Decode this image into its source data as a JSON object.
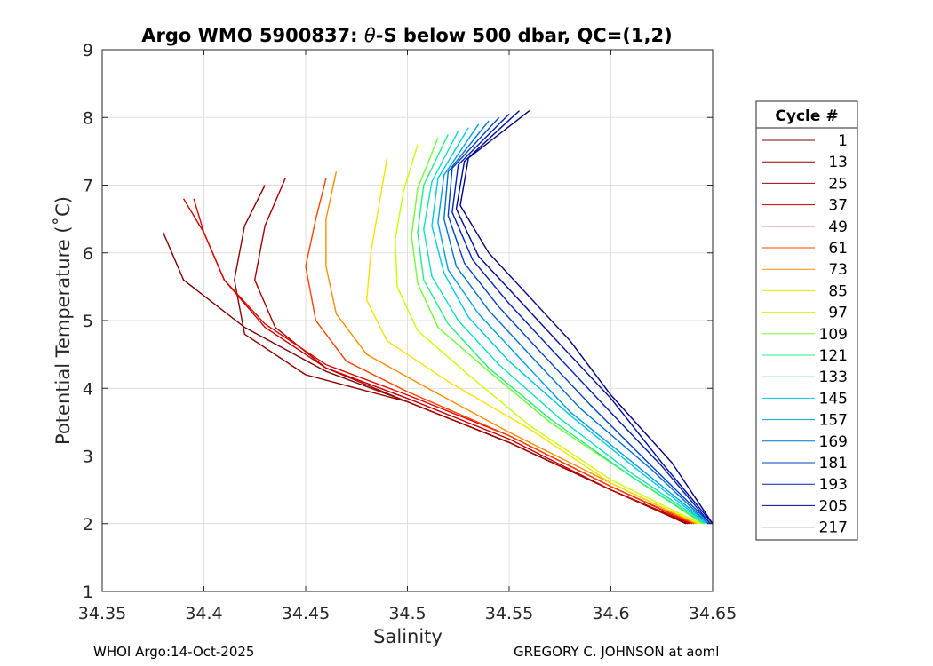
{
  "chart_data": {
    "type": "line",
    "title": "Argo WMO 5900837: θ-S below 500 dbar,  QC=(1,2)",
    "title_parts": {
      "prefix": "Argo WMO 5900837: ",
      "theta": "θ",
      "suffix": "-S below 500 dbar,  QC=(1,2)"
    },
    "xlabel": "Salinity",
    "ylabel": "Potential Temperature (˚C)",
    "xlim": [
      34.35,
      34.65
    ],
    "ylim": [
      1,
      9
    ],
    "xticks": [
      34.35,
      34.4,
      34.45,
      34.5,
      34.55,
      34.6,
      34.65
    ],
    "xtick_labels": [
      "34.35",
      "34.4",
      "34.45",
      "34.5",
      "34.55",
      "34.6",
      "34.65"
    ],
    "yticks": [
      1,
      2,
      3,
      4,
      5,
      6,
      7,
      8,
      9
    ],
    "ytick_labels": [
      "1",
      "2",
      "3",
      "4",
      "5",
      "6",
      "7",
      "8",
      "9"
    ],
    "grid": true,
    "legend_title": "Cycle #",
    "legend_position": "right",
    "series": [
      {
        "name": "1",
        "color": "#800000",
        "points": [
          [
            34.637,
            2.0
          ],
          [
            34.6,
            2.5
          ],
          [
            34.55,
            3.2
          ],
          [
            34.5,
            3.8
          ],
          [
            34.46,
            4.25
          ],
          [
            34.42,
            4.9
          ],
          [
            34.39,
            5.6
          ],
          [
            34.38,
            6.3
          ]
        ]
      },
      {
        "name": "13",
        "color": "#900000",
        "points": [
          [
            34.638,
            2.0
          ],
          [
            34.6,
            2.5
          ],
          [
            34.55,
            3.2
          ],
          [
            34.5,
            3.8
          ],
          [
            34.45,
            4.2
          ],
          [
            34.42,
            4.8
          ],
          [
            34.415,
            5.6
          ],
          [
            34.42,
            6.4
          ],
          [
            34.43,
            7.0
          ]
        ]
      },
      {
        "name": "25",
        "color": "#A80000",
        "points": [
          [
            34.638,
            2.0
          ],
          [
            34.6,
            2.5
          ],
          [
            34.55,
            3.2
          ],
          [
            34.5,
            3.8
          ],
          [
            34.46,
            4.3
          ],
          [
            34.435,
            4.9
          ],
          [
            34.425,
            5.6
          ],
          [
            34.43,
            6.4
          ],
          [
            34.44,
            7.1
          ]
        ]
      },
      {
        "name": "37",
        "color": "#C00000",
        "points": [
          [
            34.639,
            2.0
          ],
          [
            34.6,
            2.5
          ],
          [
            34.55,
            3.25
          ],
          [
            34.5,
            3.85
          ],
          [
            34.46,
            4.3
          ],
          [
            34.43,
            4.9
          ],
          [
            34.41,
            5.6
          ],
          [
            34.4,
            6.3
          ],
          [
            34.39,
            6.8
          ]
        ]
      },
      {
        "name": "49",
        "color": "#E80000",
        "points": [
          [
            34.64,
            2.0
          ],
          [
            34.6,
            2.55
          ],
          [
            34.55,
            3.3
          ],
          [
            34.5,
            3.9
          ],
          [
            34.46,
            4.35
          ],
          [
            34.43,
            4.95
          ],
          [
            34.41,
            5.6
          ],
          [
            34.4,
            6.3
          ],
          [
            34.395,
            6.8
          ]
        ]
      },
      {
        "name": "61",
        "color": "#FF4000",
        "points": [
          [
            34.641,
            2.0
          ],
          [
            34.6,
            2.55
          ],
          [
            34.55,
            3.3
          ],
          [
            34.5,
            3.95
          ],
          [
            34.47,
            4.4
          ],
          [
            34.455,
            5.0
          ],
          [
            34.45,
            5.8
          ],
          [
            34.455,
            6.5
          ],
          [
            34.46,
            7.1
          ]
        ]
      },
      {
        "name": "73",
        "color": "#FF8C00",
        "points": [
          [
            34.642,
            2.0
          ],
          [
            34.6,
            2.6
          ],
          [
            34.55,
            3.35
          ],
          [
            34.51,
            4.0
          ],
          [
            34.48,
            4.5
          ],
          [
            34.465,
            5.1
          ],
          [
            34.46,
            5.8
          ],
          [
            34.46,
            6.5
          ],
          [
            34.465,
            7.2
          ]
        ]
      },
      {
        "name": "85",
        "color": "#FFE000",
        "points": [
          [
            34.643,
            2.0
          ],
          [
            34.6,
            2.6
          ],
          [
            34.56,
            3.4
          ],
          [
            34.52,
            4.1
          ],
          [
            34.49,
            4.7
          ],
          [
            34.48,
            5.3
          ],
          [
            34.482,
            6.0
          ],
          [
            34.486,
            6.7
          ],
          [
            34.49,
            7.4
          ]
        ]
      },
      {
        "name": "97",
        "color": "#C8FF00",
        "points": [
          [
            34.644,
            2.0
          ],
          [
            34.6,
            2.65
          ],
          [
            34.56,
            3.45
          ],
          [
            34.53,
            4.2
          ],
          [
            34.505,
            4.85
          ],
          [
            34.495,
            5.5
          ],
          [
            34.494,
            6.2
          ],
          [
            34.498,
            6.9
          ],
          [
            34.505,
            7.6
          ]
        ]
      },
      {
        "name": "109",
        "color": "#70FF30",
        "points": [
          [
            34.645,
            2.0
          ],
          [
            34.61,
            2.7
          ],
          [
            34.57,
            3.5
          ],
          [
            34.54,
            4.25
          ],
          [
            34.515,
            4.9
          ],
          [
            34.505,
            5.55
          ],
          [
            34.502,
            6.25
          ],
          [
            34.505,
            6.95
          ],
          [
            34.515,
            7.7
          ]
        ]
      },
      {
        "name": "121",
        "color": "#20F080",
        "points": [
          [
            34.646,
            2.0
          ],
          [
            34.61,
            2.7
          ],
          [
            34.57,
            3.55
          ],
          [
            34.54,
            4.3
          ],
          [
            34.52,
            4.95
          ],
          [
            34.508,
            5.6
          ],
          [
            34.505,
            6.3
          ],
          [
            34.508,
            7.0
          ],
          [
            34.52,
            7.75
          ]
        ]
      },
      {
        "name": "133",
        "color": "#10E0C0",
        "points": [
          [
            34.647,
            2.0
          ],
          [
            34.61,
            2.75
          ],
          [
            34.575,
            3.55
          ],
          [
            34.545,
            4.35
          ],
          [
            34.525,
            5.0
          ],
          [
            34.512,
            5.65
          ],
          [
            34.508,
            6.35
          ],
          [
            34.512,
            7.05
          ],
          [
            34.525,
            7.8
          ]
        ]
      },
      {
        "name": "145",
        "color": "#00C8E8",
        "points": [
          [
            34.647,
            2.0
          ],
          [
            34.615,
            2.75
          ],
          [
            34.58,
            3.6
          ],
          [
            34.55,
            4.4
          ],
          [
            34.53,
            5.05
          ],
          [
            34.518,
            5.7
          ],
          [
            34.512,
            6.4
          ],
          [
            34.515,
            7.1
          ],
          [
            34.53,
            7.85
          ]
        ]
      },
      {
        "name": "157",
        "color": "#00A0E0",
        "points": [
          [
            34.648,
            2.0
          ],
          [
            34.615,
            2.8
          ],
          [
            34.58,
            3.65
          ],
          [
            34.555,
            4.45
          ],
          [
            34.535,
            5.1
          ],
          [
            34.52,
            5.75
          ],
          [
            34.515,
            6.45
          ],
          [
            34.518,
            7.15
          ],
          [
            34.535,
            7.9
          ]
        ]
      },
      {
        "name": "169",
        "color": "#0070D0",
        "points": [
          [
            34.648,
            2.0
          ],
          [
            34.62,
            2.8
          ],
          [
            34.585,
            3.7
          ],
          [
            34.56,
            4.5
          ],
          [
            34.54,
            5.15
          ],
          [
            34.524,
            5.8
          ],
          [
            34.518,
            6.5
          ],
          [
            34.52,
            7.2
          ],
          [
            34.54,
            7.95
          ]
        ]
      },
      {
        "name": "181",
        "color": "#0040C0",
        "points": [
          [
            34.649,
            2.0
          ],
          [
            34.62,
            2.85
          ],
          [
            34.59,
            3.75
          ],
          [
            34.565,
            4.55
          ],
          [
            34.545,
            5.2
          ],
          [
            34.528,
            5.85
          ],
          [
            34.52,
            6.55
          ],
          [
            34.522,
            7.25
          ],
          [
            34.545,
            8.0
          ]
        ]
      },
      {
        "name": "193",
        "color": "#0020B0",
        "points": [
          [
            34.649,
            2.0
          ],
          [
            34.625,
            2.85
          ],
          [
            34.595,
            3.8
          ],
          [
            34.57,
            4.6
          ],
          [
            34.55,
            5.25
          ],
          [
            34.532,
            5.9
          ],
          [
            34.522,
            6.6
          ],
          [
            34.525,
            7.3
          ],
          [
            34.55,
            8.05
          ]
        ]
      },
      {
        "name": "205",
        "color": "#000A98",
        "points": [
          [
            34.65,
            2.0
          ],
          [
            34.625,
            2.9
          ],
          [
            34.6,
            3.85
          ],
          [
            34.575,
            4.65
          ],
          [
            34.555,
            5.3
          ],
          [
            34.535,
            5.95
          ],
          [
            34.524,
            6.65
          ],
          [
            34.528,
            7.35
          ],
          [
            34.555,
            8.1
          ]
        ]
      },
      {
        "name": "217",
        "color": "#000080",
        "points": [
          [
            34.65,
            2.0
          ],
          [
            34.63,
            2.9
          ],
          [
            34.6,
            3.9
          ],
          [
            34.58,
            4.7
          ],
          [
            34.56,
            5.35
          ],
          [
            34.54,
            6.0
          ],
          [
            34.526,
            6.7
          ],
          [
            34.53,
            7.4
          ],
          [
            34.56,
            8.1
          ]
        ]
      }
    ]
  },
  "footer": {
    "left": "WHOI Argo:14-Oct-2025",
    "right": "GREGORY C. JOHNSON at aoml"
  }
}
